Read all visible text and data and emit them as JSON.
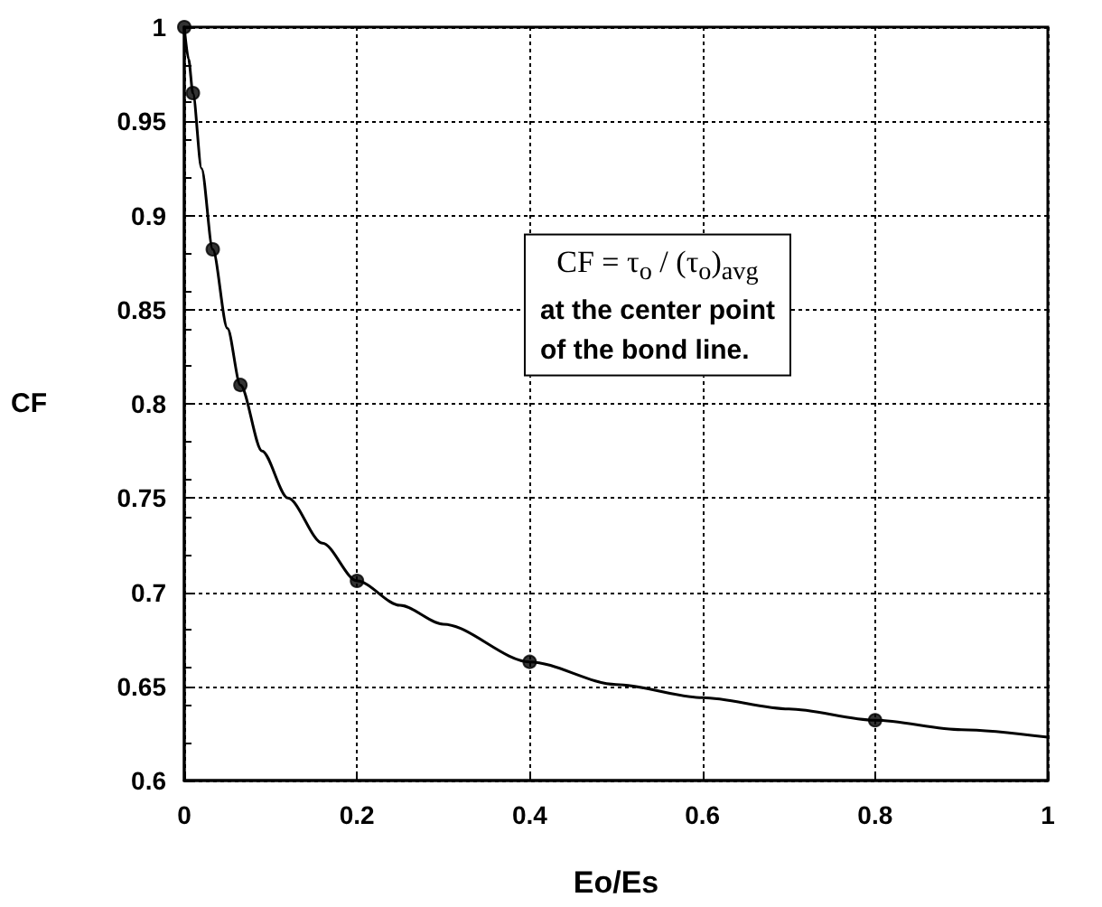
{
  "chart_data": {
    "type": "line",
    "xlabel": "Eo/Es",
    "ylabel": "CF",
    "annotations": [
      "CF = τ$_{o}$ / (τ$_{o}$)$_{avg}$\nat the center point\nof the bond line."
    ],
    "xlim": [
      0,
      1
    ],
    "xticks": [
      0,
      0.2,
      0.4,
      0.6,
      0.8,
      1
    ],
    "ylim": [
      0.6,
      1
    ],
    "yticks": [
      0.6,
      0.65,
      0.7,
      0.75,
      0.8,
      0.85,
      0.9,
      0.95,
      1
    ],
    "grid": true,
    "series": [
      {
        "color": "#000000",
        "marker": "none",
        "line_style": "solid",
        "x": [
          0,
          0.005,
          0.01,
          0.02,
          0.033,
          0.05,
          0.065,
          0.09,
          0.12,
          0.16,
          0.2,
          0.25,
          0.3,
          0.4,
          0.5,
          0.6,
          0.7,
          0.8,
          0.9,
          1
        ],
        "values": [
          1,
          0.983,
          0.965,
          0.925,
          0.882,
          0.84,
          0.81,
          0.775,
          0.75,
          0.726,
          0.706,
          0.693,
          0.683,
          0.663,
          0.651,
          0.644,
          0.638,
          0.632,
          0.627,
          0.623
        ]
      },
      {
        "type": "scatter",
        "color": "#000000",
        "marker": "circle",
        "x": [
          0,
          0.01,
          0.033,
          0.065,
          0.2,
          0.4,
          0.8
        ],
        "values": [
          1,
          0.965,
          0.882,
          0.81,
          0.706,
          0.663,
          0.632
        ]
      }
    ]
  }
}
